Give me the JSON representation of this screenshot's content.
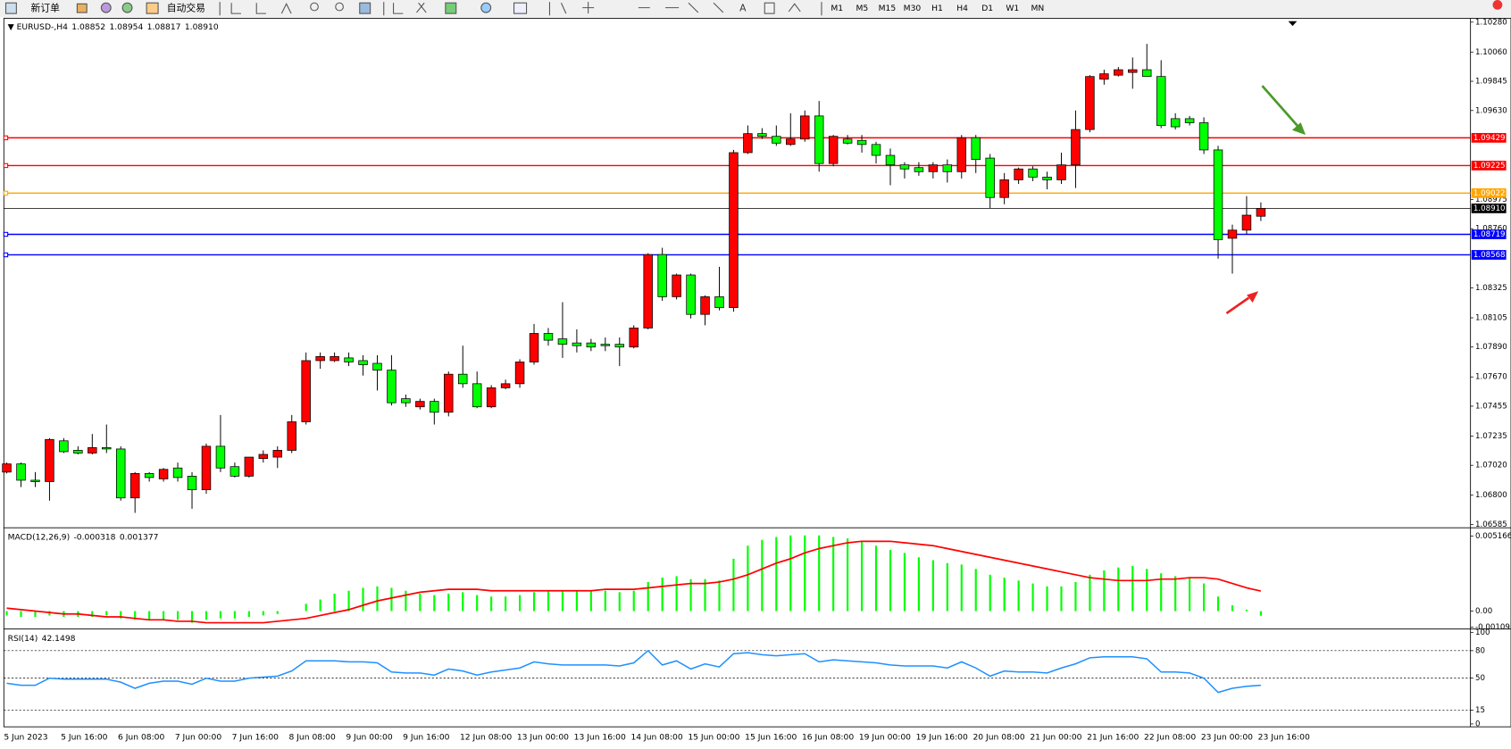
{
  "toolbar": {
    "new_order": "新订单",
    "auto_trading": "自动交易",
    "timeframes": [
      "M1",
      "M5",
      "M15",
      "M30",
      "H1",
      "H4",
      "D1",
      "W1",
      "MN"
    ]
  },
  "chart_data": [
    {
      "type": "candlestick",
      "title": "EURUSD-,H4",
      "ohlc_labels": [
        "1.08852",
        "1.08954",
        "1.08817",
        "1.08910"
      ],
      "bull_color": "#ff0000",
      "bear_color": "#00ff00",
      "categories": [
        "5 Jun 2023",
        null,
        null,
        null,
        "5 Jun 16:00",
        null,
        null,
        null,
        "6 Jun 08:00",
        null,
        null,
        null,
        "7 Jun 00:00",
        null,
        null,
        null,
        "7 Jun 16:00",
        null,
        null,
        null,
        "8 Jun 08:00",
        null,
        null,
        null,
        "9 Jun 00:00",
        null,
        null,
        null,
        "9 Jun 16:00",
        null,
        null,
        null,
        "12 Jun 08:00",
        null,
        null,
        null,
        "13 Jun 00:00",
        null,
        null,
        null,
        "13 Jun 16:00",
        null,
        null,
        null,
        "14 Jun 08:00",
        null,
        null,
        null,
        "15 Jun 00:00",
        null,
        null,
        null,
        "15 Jun 16:00",
        null,
        null,
        null,
        "16 Jun 08:00",
        null,
        null,
        null,
        "19 Jun 00:00",
        null,
        null,
        null,
        "19 Jun 16:00",
        null,
        null,
        null,
        "20 Jun 08:00",
        null,
        null,
        null,
        "21 Jun 00:00",
        null,
        null,
        null,
        "21 Jun 16:00",
        null,
        null,
        null,
        "22 Jun 08:00",
        null,
        null,
        null,
        "23 Jun 00:00",
        null,
        null,
        null,
        "23 Jun 16:00"
      ],
      "open": [
        1.0697,
        1.0703,
        1.0691,
        1.069,
        1.072,
        1.0713,
        1.0711,
        1.0715,
        1.0714,
        1.0678,
        1.0696,
        1.0692,
        1.07,
        1.0694,
        1.0684,
        1.0716,
        1.0701,
        1.0694,
        1.0707,
        1.0708,
        1.0713,
        1.0734,
        1.0779,
        1.0779,
        1.0781,
        1.0779,
        1.0777,
        1.0772,
        1.0751,
        1.0745,
        1.0749,
        1.0741,
        1.0769,
        1.0762,
        1.0745,
        1.0759,
        1.0762,
        1.0778,
        1.0799,
        1.0795,
        1.0792,
        1.0792,
        1.0791,
        1.0791,
        1.0789,
        1.0803,
        1.0857,
        1.0826,
        1.0842,
        1.0813,
        1.0826,
        1.0818,
        1.0932,
        1.0946,
        1.0944,
        1.0938,
        1.0942,
        1.0959,
        1.0924,
        1.0942,
        1.0941,
        1.0938,
        1.093,
        1.0923,
        1.0921,
        1.0918,
        1.0923,
        1.0918,
        1.0943,
        1.0928,
        1.0899,
        1.0912,
        1.092,
        1.0914,
        1.0912,
        1.0923,
        1.0949,
        1.0986,
        1.0989,
        1.0991,
        1.0993,
        1.0988,
        1.0957,
        1.0957,
        1.0954,
        1.0934,
        1.0869,
        1.0875,
        1.08852
      ],
      "high": [
        1.0704,
        1.0704,
        1.0697,
        1.0722,
        1.0722,
        1.0716,
        1.0725,
        1.0732,
        1.0716,
        1.0697,
        1.0697,
        1.07,
        1.0704,
        1.0697,
        1.0718,
        1.0739,
        1.0704,
        1.0708,
        1.0713,
        1.0716,
        1.0739,
        1.0785,
        1.0785,
        1.0785,
        1.0785,
        1.0783,
        1.0783,
        1.0783,
        1.0754,
        1.0751,
        1.0751,
        1.0771,
        1.079,
        1.0771,
        1.0761,
        1.0765,
        1.078,
        1.0806,
        1.0803,
        1.0822,
        1.0802,
        1.0795,
        1.0796,
        1.0796,
        1.0805,
        1.0858,
        1.0862,
        1.0843,
        1.0843,
        1.0827,
        1.0848,
        1.0934,
        1.0952,
        1.095,
        1.0952,
        1.0961,
        1.0963,
        1.097,
        1.0945,
        1.0945,
        1.0945,
        1.094,
        1.0935,
        1.0925,
        1.0925,
        1.0925,
        1.0927,
        1.0945,
        1.0945,
        1.0931,
        1.0917,
        1.0921,
        1.0922,
        1.0918,
        1.0932,
        1.0963,
        1.0989,
        1.0993,
        1.0995,
        1.1002,
        1.1012,
        1.1,
        1.0961,
        1.0959,
        1.0958,
        1.0937,
        1.0879,
        1.09,
        1.08954
      ],
      "low": [
        1.0696,
        1.0686,
        1.0686,
        1.0676,
        1.0711,
        1.071,
        1.071,
        1.0711,
        1.0676,
        1.0667,
        1.069,
        1.069,
        1.069,
        1.067,
        1.0681,
        1.0697,
        1.0693,
        1.0693,
        1.0704,
        1.07,
        1.0711,
        1.0732,
        1.0773,
        1.0778,
        1.0775,
        1.0768,
        1.0757,
        1.0746,
        1.0745,
        1.0743,
        1.0732,
        1.0738,
        1.0759,
        1.0744,
        1.0744,
        1.0758,
        1.0759,
        1.0776,
        1.079,
        1.0781,
        1.0785,
        1.0786,
        1.0786,
        1.0775,
        1.0788,
        1.0802,
        1.0823,
        1.0824,
        1.081,
        1.0805,
        1.0816,
        1.0815,
        1.0931,
        1.0942,
        1.0937,
        1.0937,
        1.094,
        1.0918,
        1.0922,
        1.0938,
        1.0932,
        1.0924,
        1.0908,
        1.0913,
        1.0915,
        1.0913,
        1.091,
        1.0913,
        1.0917,
        1.0891,
        1.0894,
        1.0909,
        1.0911,
        1.0905,
        1.0909,
        1.0906,
        1.0947,
        1.0982,
        1.0988,
        1.0979,
        1.0988,
        1.095,
        1.0949,
        1.0952,
        1.0931,
        1.0854,
        1.0843,
        1.0872,
        1.08817
      ],
      "close": [
        1.0703,
        1.0691,
        1.069,
        1.0721,
        1.0712,
        1.0711,
        1.0715,
        1.0714,
        1.0678,
        1.0696,
        1.0693,
        1.0699,
        1.0693,
        1.0684,
        1.0716,
        1.07,
        1.0694,
        1.0708,
        1.071,
        1.0713,
        1.0734,
        1.0779,
        1.0782,
        1.0782,
        1.0778,
        1.0776,
        1.0772,
        1.0748,
        1.0748,
        1.0749,
        1.0741,
        1.0769,
        1.0762,
        1.0745,
        1.0759,
        1.0762,
        1.0778,
        1.0799,
        1.0794,
        1.0791,
        1.079,
        1.0789,
        1.079,
        1.0789,
        1.0803,
        1.0857,
        1.0826,
        1.0842,
        1.0813,
        1.0826,
        1.0818,
        1.0932,
        1.0946,
        1.0944,
        1.0939,
        1.0942,
        1.0959,
        1.0924,
        1.0944,
        1.0939,
        1.0938,
        1.093,
        1.0923,
        1.092,
        1.0918,
        1.0923,
        1.0918,
        1.0943,
        1.0927,
        1.0899,
        1.0912,
        1.092,
        1.0914,
        1.0912,
        1.0923,
        1.0949,
        1.0988,
        1.099,
        1.0993,
        1.0993,
        1.0988,
        1.0952,
        1.0951,
        1.0954,
        1.0934,
        1.0868,
        1.0875,
        1.0886,
        1.0891
      ],
      "ylim": [
        1.06571,
        1.10301
      ],
      "yticks": [
        {
          "value": 1.1028,
          "label": "1.10280"
        },
        {
          "value": 1.1006,
          "label": "1.10060"
        },
        1.09845,
        {
          "value": 1.0963,
          "label": "1.09630"
        },
        1.08975,
        {
          "value": 1.0876,
          "label": "1.08760"
        },
        1.08325,
        1.08105,
        {
          "value": 1.0789,
          "label": "1.07890"
        },
        {
          "value": 1.0767,
          "label": "1.07670"
        },
        1.07455,
        1.07235,
        {
          "value": 1.0702,
          "label": "1.07020"
        },
        {
          "value": 1.068,
          "label": "1.06800"
        },
        1.06585
      ],
      "hlines": [
        {
          "value": 1.09429,
          "color": "#ff0000"
        },
        {
          "value": 1.09225,
          "color": "#ff0000"
        },
        {
          "value": 1.09022,
          "color": "#ffa500"
        },
        {
          "value": 1.08719,
          "color": "#0000ff"
        },
        {
          "value": 1.08568,
          "color": "#0000ff"
        }
      ],
      "current_price": {
        "value": 1.0891,
        "label": "1.08910"
      }
    },
    {
      "type": "macd",
      "title": "MACD(12,26,9)",
      "color": "#00ff00",
      "signal_color": "#ff0000",
      "values": [
        -0.0003,
        -0.0004,
        -0.0004,
        -0.0003,
        -0.0004,
        -0.0004,
        -0.0004,
        -0.0003,
        -0.0005,
        -0.0006,
        -0.0006,
        -0.0006,
        -0.0006,
        -0.0008,
        -0.0006,
        -0.0005,
        -0.0005,
        -0.0004,
        -0.0003,
        -0.0002,
        0.0,
        0.0005,
        0.0008,
        0.0012,
        0.0014,
        0.0016,
        0.0017,
        0.0016,
        0.0014,
        0.0012,
        0.0011,
        0.0012,
        0.0013,
        0.0011,
        0.001,
        0.001,
        0.0011,
        0.0013,
        0.0014,
        0.0014,
        0.0014,
        0.0014,
        0.0014,
        0.0013,
        0.0014,
        0.002,
        0.0023,
        0.0024,
        0.0022,
        0.0022,
        0.0021,
        0.0036,
        0.0045,
        0.0049,
        0.0051,
        0.0052,
        0.0052,
        0.0052,
        0.0051,
        0.005,
        0.0048,
        0.0045,
        0.0042,
        0.004,
        0.0037,
        0.0035,
        0.0033,
        0.0032,
        0.0029,
        0.0025,
        0.0023,
        0.0021,
        0.0019,
        0.0017,
        0.0017,
        0.002,
        0.0025,
        0.0028,
        0.003,
        0.0031,
        0.0029,
        0.0026,
        0.0024,
        0.0023,
        0.0019,
        0.001,
        0.0004,
        0.0001,
        -0.000318
      ],
      "signal": [
        0.0002,
        0.0001,
        0.0,
        -0.0001,
        -0.0002,
        -0.0002,
        -0.0003,
        -0.0004,
        -0.0004,
        -0.0005,
        -0.0006,
        -0.0006,
        -0.0007,
        -0.0007,
        -0.0008,
        -0.0008,
        -0.0008,
        -0.0008,
        -0.0008,
        -0.0007,
        -0.0006,
        -0.0005,
        -0.0003,
        -0.0001,
        0.0001,
        0.0004,
        0.0007,
        0.0009,
        0.0011,
        0.0013,
        0.0014,
        0.0015,
        0.0015,
        0.0015,
        0.0014,
        0.0014,
        0.0014,
        0.0014,
        0.0014,
        0.0014,
        0.0014,
        0.0014,
        0.0015,
        0.0015,
        0.0015,
        0.0016,
        0.0017,
        0.0018,
        0.0019,
        0.0019,
        0.002,
        0.0022,
        0.0025,
        0.0029,
        0.0033,
        0.0036,
        0.004,
        0.0043,
        0.0045,
        0.0047,
        0.0048,
        0.0048,
        0.0048,
        0.0047,
        0.0046,
        0.0045,
        0.0043,
        0.0041,
        0.0039,
        0.0037,
        0.0035,
        0.0033,
        0.0031,
        0.0029,
        0.0027,
        0.0025,
        0.0023,
        0.0022,
        0.0021,
        0.0021,
        0.0021,
        0.0022,
        0.0022,
        0.0023,
        0.0023,
        0.0022,
        0.0019,
        0.0016,
        0.001377
      ],
      "ylim": [
        -0.00113,
        0.00563
      ],
      "yticks": [
        0.005166,
        {
          "value": 0,
          "label": "0.00"
        },
        -0.001095
      ]
    },
    {
      "type": "line",
      "title": "RSI(14)",
      "color": "#1e90ff",
      "values": [
        44.4,
        42.2,
        42.2,
        50.0,
        48.9,
        48.9,
        48.9,
        48.9,
        45.6,
        38.9,
        44.4,
        46.7,
        46.7,
        43.3,
        50.0,
        46.7,
        46.7,
        50.0,
        51.1,
        52.2,
        57.8,
        68.9,
        68.9,
        68.9,
        67.8,
        67.8,
        66.7,
        56.7,
        55.6,
        55.6,
        53.3,
        60.0,
        57.8,
        53.3,
        56.7,
        58.9,
        61.1,
        67.8,
        65.6,
        64.4,
        64.4,
        64.4,
        64.4,
        63.3,
        66.7,
        80.0,
        64.4,
        68.9,
        60.0,
        65.6,
        62.2,
        76.7,
        77.8,
        75.6,
        74.4,
        75.6,
        76.7,
        67.8,
        70.0,
        68.9,
        67.8,
        66.7,
        64.4,
        63.3,
        63.3,
        63.3,
        61.1,
        67.8,
        61.1,
        52.2,
        57.8,
        56.7,
        56.7,
        55.6,
        61.1,
        65.6,
        72.2,
        73.3,
        73.3,
        73.3,
        71.1,
        56.7,
        56.7,
        55.6,
        50.0,
        34.4,
        38.9,
        41.1,
        42.1498
      ],
      "ylim": [
        0,
        100
      ],
      "yticks": [
        100,
        80,
        50,
        15,
        0
      ]
    }
  ]
}
